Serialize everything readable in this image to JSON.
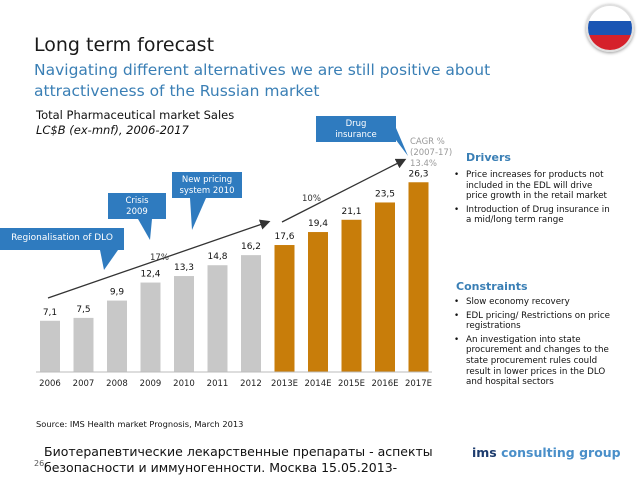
{
  "header": {
    "title": "Long term forecast",
    "subtitle": "Navigating different alternatives we are still positive about attractiveness of the Russian market"
  },
  "flag": {
    "colors": [
      "#ffffff",
      "#1a55b4",
      "#d5212b"
    ]
  },
  "chart_data": {
    "type": "bar",
    "title": "Total Pharmaceutical market Sales",
    "unit": "LC$B (ex-mnf), 2006-2017",
    "categories": [
      "2006",
      "2007",
      "2008",
      "2009",
      "2010",
      "2011",
      "2012",
      "2013E",
      "2014E",
      "2015E",
      "2016E",
      "2017E"
    ],
    "values": [
      7.1,
      7.5,
      9.9,
      12.4,
      13.3,
      14.8,
      16.2,
      17.6,
      19.4,
      21.1,
      23.5,
      26.3
    ],
    "value_labels": [
      "7,1",
      "7,5",
      "9,9",
      "12,4",
      "13,3",
      "14,8",
      "16,2",
      "17,6",
      "19,4",
      "21,1",
      "23,5",
      "26,3"
    ],
    "colors": {
      "actual": "#c8c8c8",
      "forecast": "#c87d0a"
    },
    "forecast_from_index": 7,
    "ylim": [
      0,
      28
    ],
    "grid": false,
    "growth_labels": {
      "actual_period": "17%",
      "forecast_period": "10%"
    },
    "cagr_label": {
      "line1": "CAGR %",
      "line2": "(2007-17)",
      "line3": "13.4%"
    },
    "annotations": {
      "regional": "Regionalisation of DLO",
      "crisis_line1": "Crisis",
      "crisis_line2": "2009",
      "pricing_line1": "New pricing",
      "pricing_line2": "system 2010",
      "drug_line1": "Drug",
      "drug_line2": "insurance"
    },
    "accent": "#2f7bbf"
  },
  "drivers": {
    "title": "Drivers",
    "items": [
      "Price increases for products not included in the EDL will drive price growth in the retail market",
      "Introduction of Drug insurance in a mid/long term range"
    ]
  },
  "constraints": {
    "title": "Constraints",
    "items": [
      "Slow economy recovery",
      "EDL pricing/ Restrictions on price registrations",
      "An investigation into state procurement and changes to the state procurement rules could result in lower prices in the DLO and hospital sectors"
    ]
  },
  "footer": {
    "source": "Source: IMS Health market Prognosis, March 2013",
    "page": "26",
    "ru_line": "Биотерапевтические лекарственные препараты - аспекты безопасности и иммуногенности. Москва 15.05.2013-",
    "logo_prefix": "ims",
    "logo_suffix": " consulting group"
  }
}
